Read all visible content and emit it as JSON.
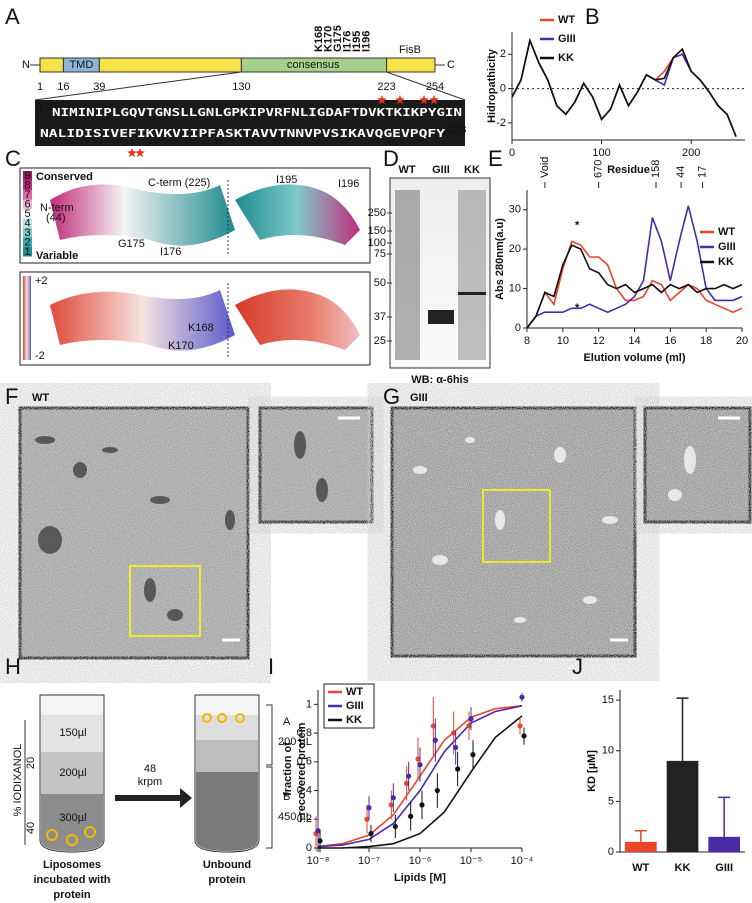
{
  "panel_letters": [
    "A",
    "B",
    "C",
    "D",
    "E",
    "F",
    "G",
    "H",
    "I",
    "J"
  ],
  "panel_a": {
    "n": "N",
    "c": "C",
    "tmd": "TMD",
    "consensus": "consensus",
    "fisb": "FisB",
    "positions": [
      "1",
      "16",
      "39",
      "130",
      "223",
      "254"
    ],
    "mutations": [
      "K168",
      "K170",
      "G175",
      "I176",
      "I195",
      "I196"
    ],
    "seq_start": "130",
    "seq_end": "223",
    "seq_lines": [
      "NIMINIPLGQVTGNSLLGNLGPKIPVRFNLIGDAFTDVKTKIKPYGIN",
      "NALIDISIVEFIKVKVIIPFASKTAVVTNNVPVSIKAVQGEVPQFY"
    ]
  },
  "panel_c": {
    "conserved": "Conserved",
    "variable": "Variable",
    "scale": [
      "9",
      "8",
      "7",
      "6",
      "5",
      "4",
      "3",
      "2",
      "1"
    ],
    "n_term": "N-term",
    "n_term_pos": "(44)",
    "c_term": "C-term (225)",
    "g175": "G175",
    "i176": "I176",
    "i195": "I195",
    "i196": "I196",
    "plus": "+2",
    "minus": "-2",
    "k168": "K168",
    "k170": "K170"
  },
  "panel_d": {
    "lanes": [
      "WT",
      "GIII",
      "KK"
    ],
    "ladder": [
      "250",
      "150",
      "100",
      "75",
      "50",
      "37",
      "25"
    ],
    "footer": "WB: α-6his"
  },
  "panel_f": {
    "label": "WT"
  },
  "panel_g": {
    "label": "GIII"
  },
  "panel_h": {
    "axis": "% IODIXANOL",
    "axis_ticks": [
      "20",
      "40"
    ],
    "volumes": [
      "150µl",
      "200µl",
      "300µl"
    ],
    "speed": [
      "48",
      "krpm"
    ],
    "fraction_a": [
      "A",
      "200 µL"
    ],
    "fraction_b": [
      "B",
      "450 µL"
    ],
    "left_caption": [
      "Liposomes",
      "incubated with",
      "protein"
    ],
    "right_caption": [
      "Unbound",
      "protein"
    ]
  },
  "chart_data": [
    {
      "type": "line",
      "xlabel": "Residue",
      "ylabel": "Hidropathicity",
      "x": [
        0,
        10,
        20,
        30,
        40,
        50,
        60,
        70,
        80,
        90,
        100,
        110,
        120,
        130,
        140,
        150,
        160,
        170,
        180,
        190,
        200,
        210,
        220,
        230,
        240,
        250
      ],
      "series": [
        {
          "name": "WT",
          "color": "#e8452a",
          "values": [
            -0.5,
            0.5,
            2.8,
            1.5,
            0.5,
            -1.0,
            -1.5,
            -0.8,
            0.3,
            -0.5,
            -1.8,
            -1.2,
            0.2,
            -1.0,
            -0.2,
            0.8,
            0.5,
            1.0,
            1.8,
            2.3,
            1.0,
            0.5,
            -0.2,
            -1.0,
            -1.5,
            -2.8
          ]
        },
        {
          "name": "GIII",
          "color": "#4b2aa8",
          "values": [
            -0.5,
            0.5,
            2.8,
            1.5,
            0.5,
            -1.0,
            -1.5,
            -0.8,
            0.3,
            -0.5,
            -1.8,
            -1.2,
            0.2,
            -1.0,
            -0.2,
            0.8,
            0.5,
            0.2,
            1.8,
            2.0,
            1.0,
            0.5,
            -0.2,
            -1.0,
            -1.5,
            -2.8
          ]
        },
        {
          "name": "KK",
          "color": "#111111",
          "values": [
            -0.5,
            0.5,
            2.8,
            1.5,
            0.5,
            -1.0,
            -1.5,
            -0.8,
            0.3,
            -0.5,
            -1.8,
            -1.2,
            0.2,
            -1.0,
            -0.2,
            0.8,
            0.5,
            0.6,
            1.8,
            2.3,
            1.0,
            0.5,
            -0.2,
            -1.0,
            -1.5,
            -2.8
          ]
        }
      ],
      "xlim": [
        0,
        260
      ],
      "ylim": [
        -3,
        3.3
      ],
      "xticks": [
        0,
        100,
        200
      ],
      "yticks": [
        -2,
        0,
        2
      ],
      "reference_line": 0
    },
    {
      "type": "line",
      "xlabel": "Elution volume (ml)",
      "ylabel": "Abs 280nm(a.u)",
      "x": [
        8,
        8.5,
        9,
        9.5,
        10,
        10.5,
        11,
        11.5,
        12,
        12.5,
        13,
        13.5,
        14,
        14.5,
        15,
        15.5,
        16,
        16.5,
        17,
        17.5,
        18,
        18.5,
        19,
        19.5,
        20
      ],
      "series": [
        {
          "name": "WT",
          "color": "#e8452a",
          "values": [
            0,
            3,
            9,
            6,
            15,
            22,
            21,
            18,
            18,
            16,
            10,
            7,
            7,
            8,
            12,
            11,
            7,
            9,
            11,
            10,
            7,
            6,
            5,
            4,
            5
          ]
        },
        {
          "name": "GIII",
          "color": "#4b2aa8",
          "values": [
            0,
            3,
            4,
            4,
            4,
            5,
            5,
            6,
            5,
            4,
            5,
            6,
            8,
            12,
            28,
            22,
            12,
            22,
            31,
            22,
            10,
            7,
            7,
            7,
            8
          ]
        },
        {
          "name": "KK",
          "color": "#111111",
          "values": [
            0,
            3,
            9,
            8,
            16,
            21,
            20,
            15,
            14,
            11,
            10,
            11,
            9,
            10,
            11,
            9,
            11,
            10,
            11,
            9,
            10,
            10,
            11,
            10,
            11
          ]
        }
      ],
      "xlim": [
        8,
        20
      ],
      "ylim": [
        0,
        35
      ],
      "xticks": [
        8,
        10,
        12,
        14,
        16,
        18,
        20
      ],
      "yticks": [
        0,
        10,
        20,
        30
      ],
      "markers": [
        {
          "label": "Void",
          "x": 9
        },
        {
          "label": "670",
          "x": 12
        },
        {
          "label": "158",
          "x": 15.2
        },
        {
          "label": "44",
          "x": 16.6
        },
        {
          "label": "17",
          "x": 17.8
        }
      ],
      "annotations": [
        {
          "text": "*",
          "x": 10.8,
          "y": 26,
          "color": "#e8452a"
        },
        {
          "text": "*",
          "x": 10.8,
          "y": 5,
          "color": "#4b2aa8"
        }
      ]
    },
    {
      "type": "scatter",
      "xlabel": "Lipids [M]",
      "ylabel": [
        "fraction of",
        "recovered protein"
      ],
      "xscale": "log",
      "x": [
        1e-08,
        1e-07,
        3e-07,
        6e-07,
        1e-06,
        2e-06,
        5e-06,
        1e-05,
        0.0001
      ],
      "fit_x": [
        1e-08,
        3e-08,
        1e-07,
        3e-07,
        1e-06,
        3e-06,
        1e-05,
        3e-05,
        0.0001
      ],
      "series": [
        {
          "name": "WT",
          "color": "#e8452a",
          "values": [
            0.1,
            0.2,
            0.3,
            0.45,
            0.62,
            0.85,
            0.8,
            0.85,
            0.85
          ],
          "errors": [
            0.12,
            0.1,
            0.1,
            0.12,
            0.15,
            0.2,
            0.15,
            0.1,
            0.06
          ],
          "fit": [
            0.01,
            0.03,
            0.09,
            0.23,
            0.5,
            0.75,
            0.91,
            0.97,
            0.99
          ]
        },
        {
          "name": "GIII",
          "color": "#4b2aa8",
          "values": [
            0.12,
            0.28,
            0.35,
            0.5,
            0.58,
            0.75,
            0.7,
            0.9,
            1.05
          ],
          "errors": [
            0.1,
            0.08,
            0.1,
            0.1,
            0.12,
            0.15,
            0.12,
            0.08,
            0.03
          ],
          "fit": [
            0.01,
            0.02,
            0.06,
            0.17,
            0.4,
            0.67,
            0.87,
            0.95,
            0.99
          ]
        },
        {
          "name": "KK",
          "color": "#111111",
          "values": [
            0.05,
            0.1,
            0.15,
            0.22,
            0.3,
            0.4,
            0.55,
            0.65,
            0.78
          ],
          "errors": [
            0.08,
            0.06,
            0.08,
            0.1,
            0.1,
            0.12,
            0.12,
            0.1,
            0.06
          ],
          "fit": [
            0,
            0,
            0.01,
            0.03,
            0.1,
            0.25,
            0.53,
            0.77,
            0.92
          ]
        }
      ],
      "xlim": [
        1e-08,
        0.0001
      ],
      "ylim": [
        0,
        1.1
      ],
      "xticks": [
        {
          "value": 1e-08,
          "label": "10⁻⁸"
        },
        {
          "value": 1e-07,
          "label": "10⁻⁷"
        },
        {
          "value": 1e-06,
          "label": "10⁻⁶"
        },
        {
          "value": 1e-05,
          "label": "10⁻⁵"
        },
        {
          "value": 0.0001,
          "label": "10⁻⁴"
        }
      ],
      "yticks": [
        0,
        0.2,
        0.4,
        0.6,
        0.8,
        1
      ]
    },
    {
      "type": "bar",
      "ylabel": "KD [µM]",
      "categories": [
        "WT",
        "KK",
        "GIII"
      ],
      "values": [
        1,
        9,
        1.5
      ],
      "errors": [
        1.1,
        6.2,
        3.9
      ],
      "colors": [
        "#e8452a",
        "#222222",
        "#4b2aa8"
      ],
      "ylim": [
        0,
        16
      ],
      "yticks": [
        0,
        5,
        10,
        15
      ]
    }
  ]
}
